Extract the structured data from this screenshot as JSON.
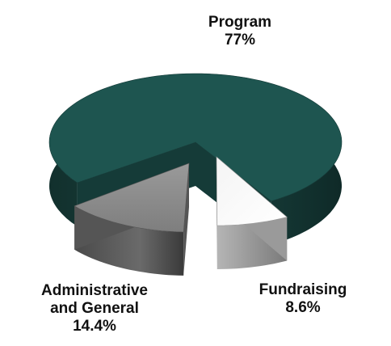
{
  "chart_data": {
    "type": "pie",
    "title": "",
    "slices": [
      {
        "name": "Program",
        "value": 77,
        "label": "77%",
        "color": "#1e5550",
        "side_color": "#153b38"
      },
      {
        "name": "Fundraising",
        "value": 8.6,
        "label": "8.6%",
        "color": "#ffffff",
        "side_color": "#9a9a9a"
      },
      {
        "name": "Administrative and General",
        "name_lines": [
          "Administrative",
          "and General"
        ],
        "value": 14.4,
        "label": "14.4%",
        "color": "#8a8a8a",
        "side_color": "#555555"
      }
    ],
    "style": "3d-exploded"
  }
}
